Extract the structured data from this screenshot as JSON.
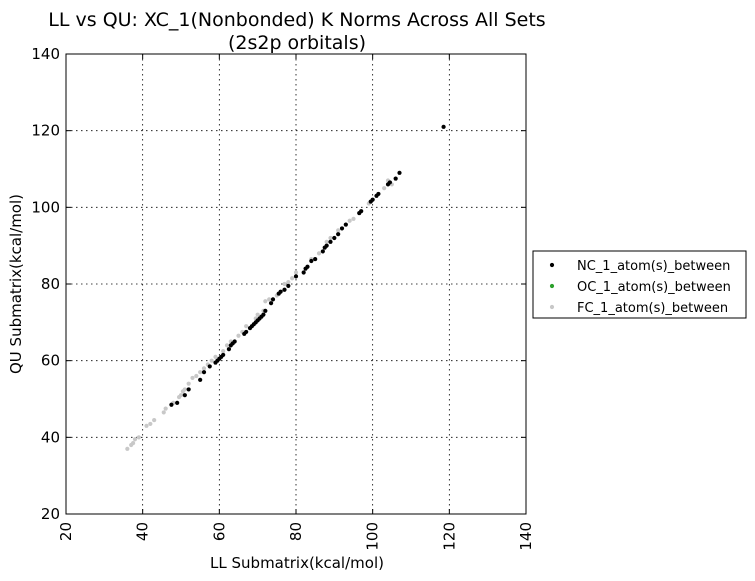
{
  "chart_data": {
    "type": "scatter",
    "title": "LL vs QU: XC_1(Nonbonded) K Norms Across All Sets",
    "subtitle": "(2s2p orbitals)",
    "xlabel": "LL Submatrix(kcal/mol)",
    "ylabel": "QU Submatrix(kcal/mol)",
    "xlim": [
      20,
      140
    ],
    "ylim": [
      20,
      140
    ],
    "xticks": [
      20,
      40,
      60,
      80,
      100,
      120,
      140
    ],
    "yticks": [
      20,
      40,
      60,
      80,
      100,
      120,
      140
    ],
    "xtick_labels": [
      "20",
      "40",
      "60",
      "80",
      "100",
      "120",
      "140"
    ],
    "ytick_labels": [
      "20",
      "40",
      "60",
      "80",
      "100",
      "120",
      "140"
    ],
    "grid": true,
    "legend_position": "outside-right",
    "series": [
      {
        "name": "NC_1_atom(s)_between",
        "color": "#000000",
        "x": [
          47.5,
          49,
          51,
          52,
          55,
          56,
          57.5,
          59,
          59.5,
          60,
          60.5,
          61,
          62.5,
          63,
          63.5,
          64,
          66.5,
          67,
          68,
          68.5,
          69,
          69.5,
          70,
          70.5,
          71,
          71.5,
          72,
          73.5,
          74,
          75.5,
          76,
          77,
          78,
          80,
          82,
          82.5,
          83,
          84,
          85,
          87,
          87.5,
          88,
          89,
          90,
          91,
          92,
          93,
          96.5,
          97,
          99.5,
          100,
          101,
          101.5,
          104,
          104.5,
          106,
          107,
          118.5
        ],
        "y": [
          48.5,
          49,
          51,
          52.5,
          55,
          57,
          58.5,
          59.5,
          60,
          60.5,
          61,
          61.5,
          63,
          64,
          64.5,
          65,
          67,
          67.5,
          68.5,
          69,
          69.5,
          70,
          70.5,
          71,
          71.5,
          72,
          73,
          75,
          76,
          77.5,
          78,
          78.5,
          79.5,
          82,
          83,
          84,
          84.5,
          86,
          86.5,
          88.5,
          89.5,
          90,
          91,
          92,
          93,
          94.5,
          95.5,
          98.5,
          99,
          101.5,
          102,
          103,
          103.5,
          106,
          106.5,
          107.5,
          109,
          121
        ]
      },
      {
        "name": "OC_1_atom(s)_between",
        "color": "#2ca02c",
        "x": [],
        "y": []
      },
      {
        "name": "FC_1_atom(s)_between",
        "color": "#c8c8c8",
        "x": [
          36,
          37,
          37.5,
          38,
          39,
          41,
          42,
          43,
          45.5,
          46,
          48,
          49.5,
          50,
          50.5,
          51,
          52,
          53,
          54,
          55,
          56,
          57,
          58,
          59,
          61,
          62,
          63,
          65,
          66,
          67,
          69.5,
          70,
          71.5,
          72,
          73,
          75,
          77,
          78,
          79,
          80,
          84,
          86,
          88,
          89,
          91,
          94,
          95,
          97,
          99,
          103,
          104,
          105
        ],
        "y": [
          37,
          38,
          38.5,
          39.5,
          40,
          43,
          43.5,
          44.5,
          46.5,
          47.5,
          49,
          50.5,
          51,
          52,
          52.5,
          54,
          55.5,
          56,
          57,
          58,
          59,
          60,
          61,
          62.5,
          64,
          65,
          66.5,
          67.5,
          69,
          71,
          72,
          73,
          75.5,
          76,
          77,
          80,
          80.5,
          81.5,
          83,
          86.5,
          88,
          91,
          92,
          94,
          96.5,
          97,
          99,
          101,
          105,
          107,
          106
        ]
      }
    ]
  }
}
